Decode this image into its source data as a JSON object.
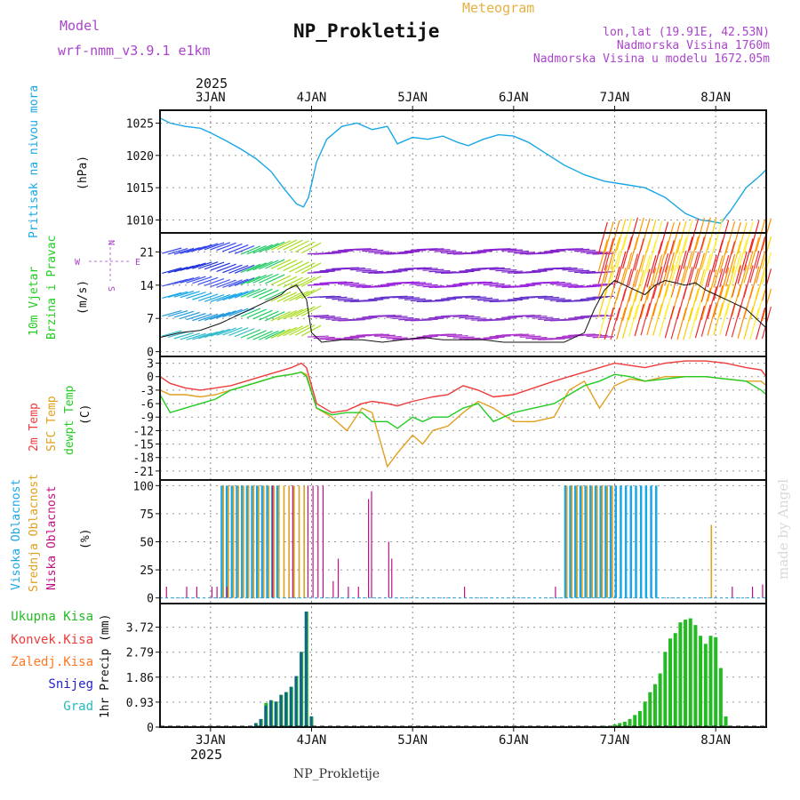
{
  "header": {
    "model_label": "Model",
    "model_name": "wrf-nmm_v3.9.1 e1km",
    "title": "NP_Prokletije",
    "subtitle": "Meteogram",
    "coords": "lon,lat (19.91E, 42.53N)",
    "elevation": "Nadmorska Visina 1760m",
    "model_elevation": "Nadmorska Visina u modelu 1672.05m",
    "footer": "NP_Prokletije",
    "watermark": "made by Angel"
  },
  "colors": {
    "pressure": "#1aa7e6",
    "temp2m": "#ee3b3b",
    "sfc": "#e0a020",
    "dewpt": "#22cc22",
    "high_cloud": "#1aa7e6",
    "mid_cloud": "#e0a020",
    "low_cloud": "#c01080",
    "precip_total": "#22bb22",
    "precip_conv": "#ee3b3b",
    "precip_frz": "#ff7722",
    "precip_snow": "#2222cc",
    "precip_graupel": "#22bbbb",
    "model": "#aa44cc",
    "subtitle": "#e8b040",
    "coords": "#aa44cc"
  },
  "x_axis": {
    "days": [
      "3JAN",
      "4JAN",
      "5JAN",
      "6JAN",
      "7JAN",
      "8JAN"
    ],
    "year": "2025"
  },
  "panels": {
    "pressure": {
      "ylabel_name": "Pritisak na nivou mora",
      "unit": "(hPa)",
      "ticks": [
        "1010",
        "1015",
        "1020",
        "1025"
      ]
    },
    "wind": {
      "ylabel_line1": "10m Vjetar",
      "ylabel_line2": "Brzina i Pravac",
      "unit": "(m/s)",
      "ticks": [
        "0",
        "7",
        "14",
        "21"
      ],
      "compass": {
        "n": "N",
        "s": "S",
        "e": "E",
        "w": "W"
      }
    },
    "temp": {
      "label_2m": "2m Temp",
      "label_sfc": "SFC Temp",
      "label_dew": "dewpt Temp",
      "unit": "(C)",
      "ticks": [
        "3",
        "0",
        "-3",
        "-6",
        "-9",
        "-12",
        "-15",
        "-18",
        "-21"
      ]
    },
    "cloud": {
      "label_high": "Visoka Oblacnost",
      "label_mid": "Srednja Oblacnost",
      "label_low": "Niska Oblacnost",
      "unit": "(%)",
      "ticks": [
        "0",
        "25",
        "50",
        "75",
        "100"
      ]
    },
    "precip": {
      "legend": [
        "Ukupna Kisa",
        "Konvek.Kisa",
        "Zaledj.Kisa",
        "Snijeg",
        "Grad"
      ],
      "ylabel": "1hr Precip (mm)",
      "ticks": [
        "0",
        "0.93",
        "1.86",
        "2.79",
        "3.72"
      ]
    }
  },
  "chart_data": [
    {
      "type": "line",
      "name": "pressure",
      "x": [
        2.5,
        2.6,
        2.75,
        2.9,
        3.0,
        3.15,
        3.3,
        3.45,
        3.6,
        3.72,
        3.85,
        3.92,
        3.97,
        4.05,
        4.15,
        4.3,
        4.45,
        4.6,
        4.75,
        4.85,
        5.0,
        5.15,
        5.3,
        5.45,
        5.55,
        5.7,
        5.85,
        6.0,
        6.15,
        6.3,
        6.5,
        6.7,
        6.9,
        7.1,
        7.3,
        7.5,
        7.7,
        7.85,
        7.95,
        8.05,
        8.15,
        8.3,
        8.45,
        8.5
      ],
      "y": [
        1025.8,
        1025.0,
        1024.5,
        1024.2,
        1023.5,
        1022.3,
        1021.0,
        1019.5,
        1017.5,
        1015.0,
        1012.5,
        1012.0,
        1013.5,
        1019.0,
        1022.5,
        1024.5,
        1025.0,
        1024.0,
        1024.5,
        1021.8,
        1022.8,
        1022.5,
        1023.0,
        1022.0,
        1021.5,
        1022.5,
        1023.2,
        1023.0,
        1022.0,
        1020.5,
        1018.5,
        1017.0,
        1016.0,
        1015.5,
        1015.0,
        1013.5,
        1011.0,
        1010.0,
        1009.8,
        1009.5,
        1011.5,
        1015.0,
        1017.0,
        1017.8
      ],
      "ylim": [
        1008,
        1027
      ]
    },
    {
      "type": "line",
      "name": "wind speed",
      "x": [
        2.5,
        2.7,
        2.9,
        3.1,
        3.3,
        3.5,
        3.6,
        3.7,
        3.75,
        3.85,
        3.95,
        4.0,
        4.1,
        4.3,
        4.5,
        4.7,
        4.9,
        5.1,
        5.3,
        5.5,
        5.7,
        5.9,
        6.1,
        6.3,
        6.5,
        6.7,
        6.8,
        6.9,
        7.0,
        7.1,
        7.2,
        7.3,
        7.4,
        7.5,
        7.6,
        7.7,
        7.8,
        7.9,
        8.0,
        8.1,
        8.2,
        8.3,
        8.4,
        8.5
      ],
      "y": [
        3,
        4,
        4.5,
        6,
        8,
        10,
        11,
        12,
        13,
        14,
        11,
        4,
        2,
        2.5,
        2.5,
        2,
        2.5,
        3,
        2.5,
        2.5,
        2.5,
        2,
        2,
        2,
        2,
        4,
        9,
        13,
        15,
        14,
        13,
        12,
        14,
        15,
        14.5,
        14,
        14.5,
        13,
        12,
        11,
        10,
        9,
        7,
        5
      ],
      "ylim": [
        -1,
        25
      ]
    },
    {
      "type": "line",
      "name": "temperature",
      "x": [
        2.5,
        2.6,
        2.75,
        2.9,
        3.05,
        3.2,
        3.35,
        3.5,
        3.65,
        3.8,
        3.9,
        3.95,
        4.05,
        4.2,
        4.35,
        4.5,
        4.6,
        4.75,
        4.85,
        5.0,
        5.1,
        5.2,
        5.35,
        5.5,
        5.65,
        5.8,
        6.0,
        6.2,
        6.4,
        6.55,
        6.7,
        6.85,
        7.0,
        7.15,
        7.3,
        7.5,
        7.7,
        7.9,
        8.1,
        8.3,
        8.45,
        8.5
      ],
      "series": [
        {
          "key": "t2m",
          "y": [
            0,
            -1.5,
            -2.5,
            -3,
            -2.5,
            -2,
            -1,
            0,
            1,
            2,
            3,
            2,
            -6,
            -8,
            -7.5,
            -6,
            -5.5,
            -6,
            -6.5,
            -5.5,
            -5,
            -4.5,
            -4,
            -2,
            -3,
            -4.5,
            -4,
            -2.5,
            -1,
            0,
            1,
            2,
            3,
            2.5,
            2,
            3,
            3.5,
            3.5,
            3,
            2,
            1.5,
            0
          ]
        },
        {
          "key": "sfc",
          "y": [
            -3,
            -4,
            -4,
            -4.5,
            -4,
            -3,
            -2,
            -1,
            0,
            0.5,
            1,
            0.5,
            -7,
            -9,
            -12,
            -7,
            -8,
            -20,
            -17,
            -13,
            -15,
            -12,
            -11,
            -8,
            -5.5,
            -7,
            -10,
            -10,
            -9,
            -3,
            -1,
            -7,
            -2,
            -0.5,
            -1,
            0,
            0,
            0,
            -0.5,
            -1,
            -1,
            -2
          ]
        },
        {
          "key": "dew",
          "y": [
            -4,
            -8,
            -7,
            -6,
            -5,
            -3,
            -2,
            -1,
            0,
            0.5,
            1,
            0,
            -7,
            -8.5,
            -8,
            -8,
            -10,
            -10,
            -11.5,
            -9,
            -10,
            -9,
            -9,
            -7,
            -6,
            -10,
            -8,
            -7,
            -6,
            -4,
            -2,
            -1,
            0.5,
            0,
            -1,
            -0.5,
            0,
            0,
            -0.5,
            -1,
            -3,
            -4
          ]
        }
      ],
      "ylim": [
        -23,
        4.5
      ]
    },
    {
      "type": "bar",
      "name": "cloud cover",
      "high_spans": [
        [
          3.1,
          3.65,
          100
        ],
        [
          6.5,
          7.4,
          100
        ]
      ],
      "mid_spans": [
        [
          3.1,
          3.95,
          100
        ],
        [
          6.5,
          7.0,
          100
        ]
      ],
      "low_x": [
        2.55,
        2.75,
        2.85,
        3.0,
        3.05,
        3.15,
        3.6,
        3.8,
        3.95,
        4.0,
        4.05,
        4.1,
        4.2,
        4.25,
        4.35,
        4.45,
        4.55,
        4.58,
        4.75,
        4.78,
        5.5,
        6.4,
        8.15,
        8.35,
        8.45
      ],
      "low_y": [
        10,
        10,
        10,
        10,
        10,
        10,
        100,
        100,
        100,
        100,
        100,
        100,
        15,
        35,
        10,
        10,
        88,
        95,
        50,
        35,
        10,
        10,
        10,
        10,
        12
      ],
      "extra_mid": [
        [
          7.95,
          65
        ]
      ],
      "ylim": [
        -5,
        105
      ]
    },
    {
      "type": "bar",
      "name": "precipitation",
      "x": [
        3.45,
        3.5,
        3.55,
        3.6,
        3.65,
        3.7,
        3.75,
        3.8,
        3.85,
        3.9,
        3.95,
        4.0,
        6.9,
        6.95,
        7.0,
        7.05,
        7.1,
        7.15,
        7.2,
        7.25,
        7.3,
        7.35,
        7.4,
        7.45,
        7.5,
        7.55,
        7.6,
        7.65,
        7.7,
        7.75,
        7.8,
        7.85,
        7.9,
        7.95,
        8.0,
        8.05,
        8.1
      ],
      "total": [
        0.15,
        0.3,
        0.9,
        1.0,
        0.95,
        1.2,
        1.3,
        1.5,
        1.9,
        2.8,
        4.3,
        0.4,
        0.05,
        0.05,
        0.1,
        0.15,
        0.2,
        0.3,
        0.45,
        0.6,
        0.95,
        1.3,
        1.6,
        2.0,
        2.8,
        3.3,
        3.5,
        3.9,
        4.0,
        4.05,
        3.8,
        3.4,
        3.1,
        3.4,
        3.35,
        2.2,
        0.4
      ],
      "snow": [
        0.15,
        0.3,
        0.8,
        1.0,
        0.95,
        1.2,
        1.3,
        1.5,
        1.9,
        2.8,
        4.3,
        0.4,
        0,
        0,
        0,
        0,
        0,
        0,
        0,
        0,
        0,
        0,
        0,
        0,
        0,
        0,
        0,
        0,
        0,
        0,
        0,
        0,
        0,
        0,
        0,
        0,
        0
      ],
      "ylim": [
        0,
        4.6
      ]
    }
  ]
}
